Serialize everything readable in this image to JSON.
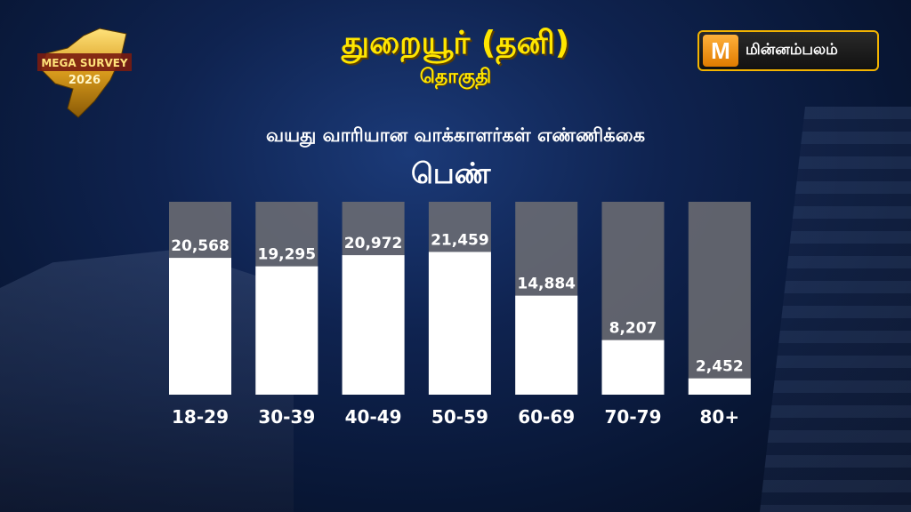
{
  "header": {
    "title": "துறையூர் (தனி)",
    "subtitle": "தொகுதி"
  },
  "caption": "வயது வாரியான வாக்காளர்கள் எண்ணிக்கை",
  "gender_label": "பெண்",
  "logo": {
    "text_line1": "MEGA SURVEY",
    "text_line2": "2026"
  },
  "brand": {
    "mark": "M",
    "name": "மின்னம்பலம்"
  },
  "chart_data": {
    "type": "bar",
    "categories": [
      "18-29",
      "30-39",
      "40-49",
      "50-59",
      "60-69",
      "70-79",
      "80+"
    ],
    "values": [
      20568,
      19295,
      20972,
      21459,
      14884,
      8207,
      2452
    ],
    "value_labels": [
      "20,568",
      "19,295",
      "20,972",
      "21,459",
      "14,884",
      "8,207",
      "2,452"
    ],
    "ylim": [
      0,
      29000
    ],
    "grid": false,
    "legend": "none",
    "colors": {
      "bar": "#ffffff",
      "track": "#6e6e73"
    }
  }
}
